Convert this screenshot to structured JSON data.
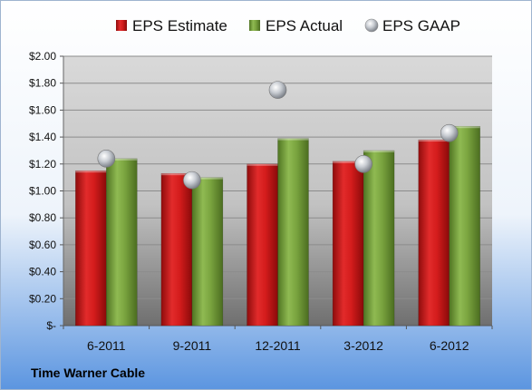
{
  "chart_data": {
    "type": "bar",
    "categories": [
      "6-2011",
      "9-2011",
      "12-2011",
      "3-2012",
      "6-2012"
    ],
    "series": [
      {
        "name": "EPS Estimate",
        "kind": "bar",
        "color": "#cc1a1a",
        "values": [
          1.15,
          1.13,
          1.2,
          1.22,
          1.38
        ]
      },
      {
        "name": "EPS Actual",
        "kind": "bar",
        "color": "#77a03c",
        "values": [
          1.24,
          1.1,
          1.39,
          1.3,
          1.48
        ]
      },
      {
        "name": "EPS GAAP",
        "kind": "scatter",
        "color": "#b8bcc4",
        "values": [
          1.24,
          1.08,
          1.75,
          1.2,
          1.43
        ]
      }
    ],
    "ylim": [
      0,
      2.0
    ],
    "yticks": [
      0,
      0.2,
      0.4,
      0.6,
      0.8,
      1.0,
      1.2,
      1.4,
      1.6,
      1.8,
      2.0
    ],
    "ytick_labels": [
      "$-",
      "$0.20",
      "$0.40",
      "$0.60",
      "$0.80",
      "$1.00",
      "$1.20",
      "$1.40",
      "$1.60",
      "$1.80",
      "$2.00"
    ],
    "grid": true,
    "legend_position": "top",
    "title": "",
    "xlabel": "",
    "ylabel": ""
  },
  "footer": {
    "company": "Time Warner Cable"
  }
}
